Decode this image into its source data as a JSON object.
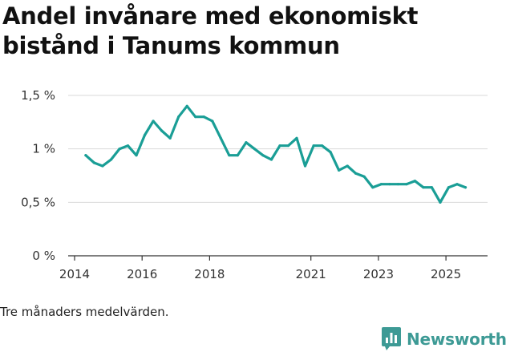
{
  "title": "Andel invånare med ekonomiskt bistånd i Tanums kommun",
  "footnote": "Tre månaders medelvärden.",
  "brand": {
    "name": "Newsworthy",
    "icon": "bar-chart-logo-icon"
  },
  "colors": {
    "line": "#1a9e96",
    "grid": "#d9d9d9",
    "axis": "#333333",
    "brand": "#3d9a95"
  },
  "chart_data": {
    "type": "line",
    "title": "Andel invånare med ekonomiskt bistånd i Tanums kommun",
    "xlabel": "",
    "ylabel": "",
    "ylim": [
      0,
      1.5
    ],
    "xlim": [
      2014,
      2025.9
    ],
    "grid": "horizontal",
    "y_ticks": [
      {
        "value": 0,
        "label": "0 %"
      },
      {
        "value": 0.5,
        "label": "0,5 %"
      },
      {
        "value": 1,
        "label": "1 %"
      },
      {
        "value": 1.5,
        "label": "1,5 %"
      }
    ],
    "x_ticks": [
      {
        "value": 2014,
        "label": "2014"
      },
      {
        "value": 2016,
        "label": "2016"
      },
      {
        "value": 2018,
        "label": "2018"
      },
      {
        "value": 2021,
        "label": "2021"
      },
      {
        "value": 2023,
        "label": "2023"
      },
      {
        "value": 2025,
        "label": "2025"
      }
    ],
    "series": [
      {
        "name": "Andel invånare med ekonomiskt bistånd",
        "x": [
          2014.33,
          2014.58,
          2014.83,
          2015.08,
          2015.33,
          2015.58,
          2015.83,
          2016.08,
          2016.33,
          2016.58,
          2016.83,
          2017.08,
          2017.33,
          2017.58,
          2017.83,
          2018.08,
          2018.33,
          2018.58,
          2018.83,
          2019.08,
          2019.33,
          2019.58,
          2019.83,
          2020.08,
          2020.33,
          2020.58,
          2020.83,
          2021.08,
          2021.33,
          2021.58,
          2021.83,
          2022.08,
          2022.33,
          2022.58,
          2022.83,
          2023.08,
          2023.33,
          2023.58,
          2023.83,
          2024.08,
          2024.33,
          2024.58,
          2024.83,
          2025.08,
          2025.33,
          2025.58
        ],
        "values": [
          0.94,
          0.87,
          0.84,
          0.9,
          1.0,
          1.03,
          0.94,
          1.13,
          1.26,
          1.17,
          1.1,
          1.3,
          1.4,
          1.3,
          1.3,
          1.26,
          1.1,
          0.94,
          0.94,
          1.06,
          1.0,
          0.94,
          0.9,
          1.03,
          1.03,
          1.1,
          0.84,
          1.03,
          1.03,
          0.97,
          0.8,
          0.84,
          0.77,
          0.74,
          0.64,
          0.67,
          0.67,
          0.67,
          0.67,
          0.7,
          0.64,
          0.64,
          0.5,
          0.64,
          0.67,
          0.64
        ]
      }
    ]
  }
}
